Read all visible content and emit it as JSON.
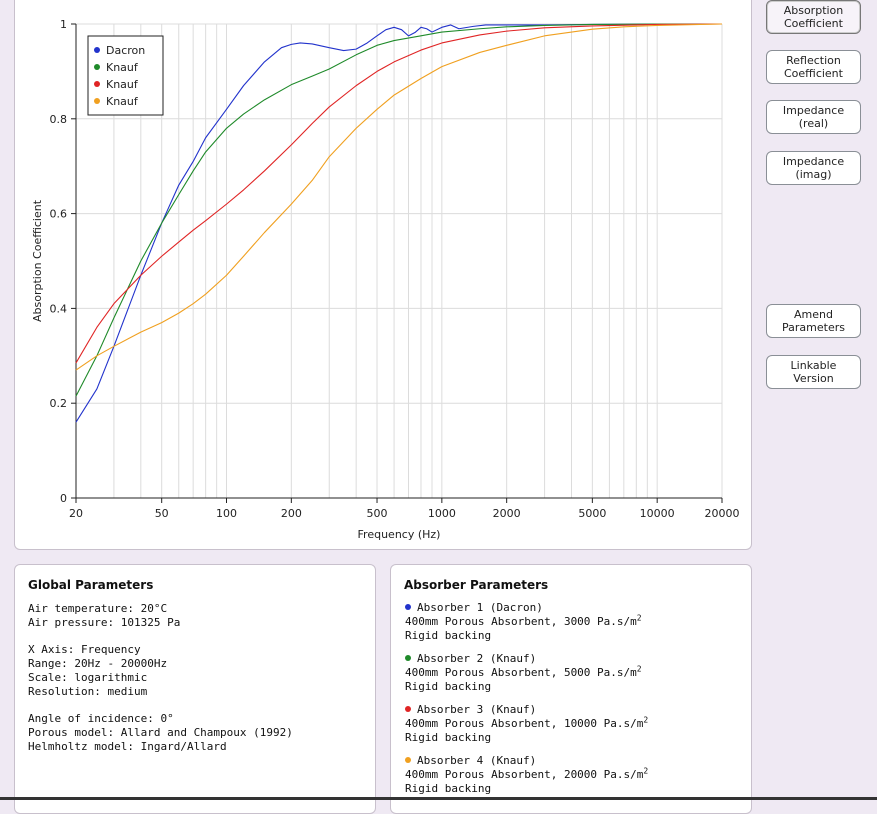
{
  "chart_data": {
    "type": "line",
    "title": "",
    "xlabel": "Frequency (Hz)",
    "ylabel": "Absorption Coefficient",
    "xscale": "log",
    "xlim": [
      20,
      20000
    ],
    "ylim": [
      0,
      1
    ],
    "x_ticks": [
      20,
      50,
      100,
      200,
      500,
      1000,
      2000,
      5000,
      10000,
      20000
    ],
    "y_ticks": [
      0,
      0.2,
      0.4,
      0.6,
      0.8,
      1
    ],
    "grid": true,
    "legend_position": "top-left",
    "series": [
      {
        "name": "Dacron",
        "color": "#2233cc",
        "points": [
          [
            20,
            0.16
          ],
          [
            25,
            0.23
          ],
          [
            30,
            0.32
          ],
          [
            40,
            0.47
          ],
          [
            50,
            0.58
          ],
          [
            60,
            0.66
          ],
          [
            70,
            0.71
          ],
          [
            80,
            0.76
          ],
          [
            100,
            0.82
          ],
          [
            120,
            0.87
          ],
          [
            150,
            0.92
          ],
          [
            180,
            0.95
          ],
          [
            200,
            0.957
          ],
          [
            220,
            0.96
          ],
          [
            250,
            0.958
          ],
          [
            300,
            0.95
          ],
          [
            350,
            0.944
          ],
          [
            400,
            0.947
          ],
          [
            450,
            0.96
          ],
          [
            500,
            0.975
          ],
          [
            550,
            0.988
          ],
          [
            600,
            0.993
          ],
          [
            650,
            0.988
          ],
          [
            700,
            0.975
          ],
          [
            750,
            0.982
          ],
          [
            800,
            0.993
          ],
          [
            850,
            0.99
          ],
          [
            900,
            0.983
          ],
          [
            1000,
            0.993
          ],
          [
            1100,
            0.998
          ],
          [
            1200,
            0.99
          ],
          [
            1400,
            0.995
          ],
          [
            1600,
            0.998
          ],
          [
            2000,
            0.998
          ],
          [
            3000,
            0.998
          ],
          [
            5000,
            0.999
          ],
          [
            10000,
            1.0
          ],
          [
            20000,
            1.0
          ]
        ]
      },
      {
        "name": "Knauf",
        "color": "#1f8a2a",
        "points": [
          [
            20,
            0.215
          ],
          [
            25,
            0.3
          ],
          [
            30,
            0.38
          ],
          [
            40,
            0.5
          ],
          [
            50,
            0.58
          ],
          [
            60,
            0.64
          ],
          [
            70,
            0.69
          ],
          [
            80,
            0.73
          ],
          [
            100,
            0.78
          ],
          [
            120,
            0.81
          ],
          [
            150,
            0.84
          ],
          [
            200,
            0.872
          ],
          [
            250,
            0.89
          ],
          [
            300,
            0.905
          ],
          [
            400,
            0.935
          ],
          [
            500,
            0.955
          ],
          [
            600,
            0.965
          ],
          [
            800,
            0.975
          ],
          [
            1000,
            0.983
          ],
          [
            1500,
            0.99
          ],
          [
            2000,
            0.994
          ],
          [
            3000,
            0.997
          ],
          [
            5000,
            0.999
          ],
          [
            10000,
            1.0
          ],
          [
            20000,
            1.0
          ]
        ]
      },
      {
        "name": "Knauf",
        "color": "#e02525",
        "points": [
          [
            20,
            0.285
          ],
          [
            25,
            0.36
          ],
          [
            30,
            0.41
          ],
          [
            40,
            0.47
          ],
          [
            50,
            0.51
          ],
          [
            60,
            0.54
          ],
          [
            70,
            0.565
          ],
          [
            80,
            0.585
          ],
          [
            100,
            0.62
          ],
          [
            120,
            0.65
          ],
          [
            150,
            0.69
          ],
          [
            200,
            0.745
          ],
          [
            250,
            0.79
          ],
          [
            300,
            0.825
          ],
          [
            400,
            0.87
          ],
          [
            500,
            0.9
          ],
          [
            600,
            0.92
          ],
          [
            800,
            0.945
          ],
          [
            1000,
            0.96
          ],
          [
            1500,
            0.977
          ],
          [
            2000,
            0.985
          ],
          [
            3000,
            0.992
          ],
          [
            5000,
            0.996
          ],
          [
            10000,
            0.999
          ],
          [
            20000,
            1.0
          ]
        ]
      },
      {
        "name": "Knauf",
        "color": "#f0a020",
        "points": [
          [
            20,
            0.27
          ],
          [
            25,
            0.3
          ],
          [
            30,
            0.32
          ],
          [
            40,
            0.35
          ],
          [
            50,
            0.37
          ],
          [
            60,
            0.39
          ],
          [
            70,
            0.41
          ],
          [
            80,
            0.43
          ],
          [
            100,
            0.47
          ],
          [
            120,
            0.51
          ],
          [
            150,
            0.56
          ],
          [
            200,
            0.62
          ],
          [
            250,
            0.67
          ],
          [
            300,
            0.72
          ],
          [
            400,
            0.78
          ],
          [
            500,
            0.82
          ],
          [
            600,
            0.85
          ],
          [
            800,
            0.885
          ],
          [
            1000,
            0.91
          ],
          [
            1500,
            0.94
          ],
          [
            2000,
            0.955
          ],
          [
            3000,
            0.975
          ],
          [
            5000,
            0.989
          ],
          [
            7000,
            0.994
          ],
          [
            10000,
            0.997
          ],
          [
            20000,
            1.0
          ]
        ]
      }
    ]
  },
  "buttons": {
    "absorption": "Absorption\nCoefficient",
    "reflection": "Reflection\nCoefficient",
    "impedance_real": "Impedance\n(real)",
    "impedance_imag": "Impedance\n(imag)",
    "amend": "Amend\nParameters",
    "linkable": "Linkable\nVersion"
  },
  "global": {
    "title": "Global Parameters",
    "air_temperature": "Air temperature: 20°C",
    "air_pressure": "Air pressure: 101325 Pa",
    "x_axis": "X Axis: Frequency",
    "range": "Range: 20Hz - 20000Hz",
    "scale": "Scale: logarithmic",
    "resolution": "Resolution: medium",
    "angle": "Angle of incidence: 0°",
    "porous_model": "Porous model: Allard and Champoux (1992)",
    "helmholtz_model": "Helmholtz model: Ingard/Allard"
  },
  "absorbers": {
    "title": "Absorber Parameters",
    "unit_sup": "2",
    "items": [
      {
        "name": "Absorber 1 (Dacron)",
        "color": "#2233cc",
        "desc": "400mm Porous Absorbent, 3000 Pa.s/m",
        "backing": "Rigid backing"
      },
      {
        "name": "Absorber 2 (Knauf)",
        "color": "#1f8a2a",
        "desc": "400mm Porous Absorbent, 5000 Pa.s/m",
        "backing": "Rigid backing"
      },
      {
        "name": "Absorber 3 (Knauf)",
        "color": "#e02525",
        "desc": "400mm Porous Absorbent, 10000 Pa.s/m",
        "backing": "Rigid backing"
      },
      {
        "name": "Absorber 4 (Knauf)",
        "color": "#f0a020",
        "desc": "400mm Porous Absorbent, 20000 Pa.s/m",
        "backing": "Rigid backing"
      }
    ]
  }
}
